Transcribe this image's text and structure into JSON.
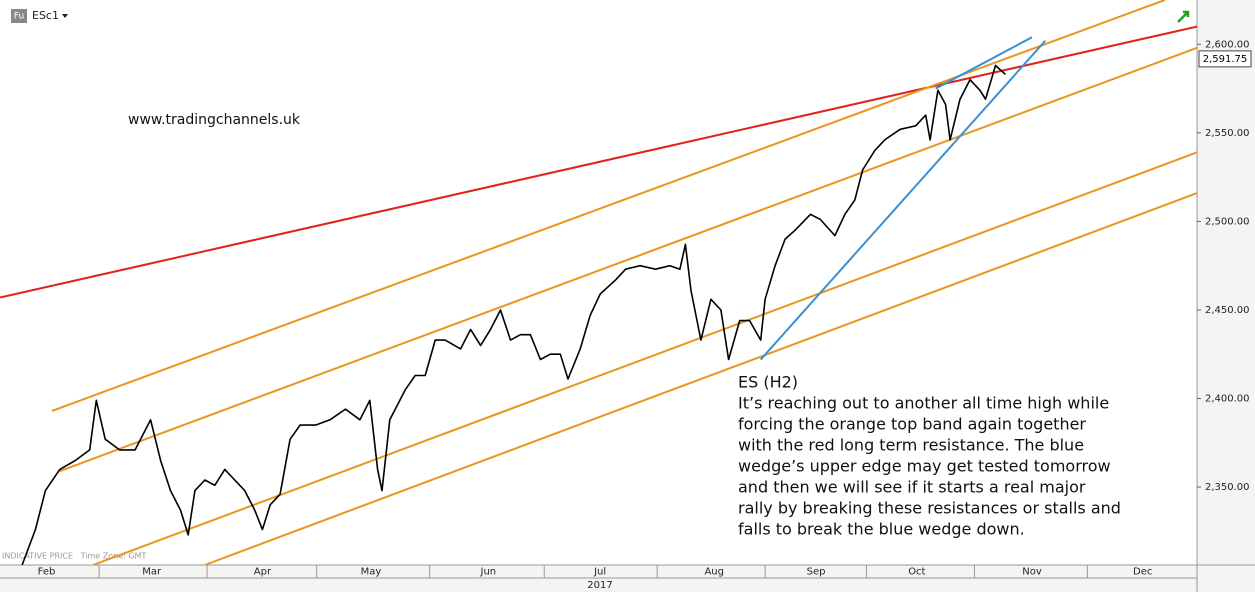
{
  "chart_data": {
    "type": "line",
    "instrument": "ESc1",
    "badge": "Fu",
    "watermark": "www.tradingchannels.uk",
    "footnote": "INDICATIVE PRICE   Time Zone: GMT",
    "year": "2017",
    "annotation": [
      "ES (H2)",
      "It’s reaching out to another all time high while",
      "forcing the orange top band again together",
      "with the red long term resistance. The blue",
      "wedge’s upper edge may get tested tomorrow",
      "and then we will see if it starts a real major",
      "rally by breaking these resistances or stalls and",
      "falls to break the blue wedge down."
    ],
    "xlim": [
      2.16,
      12.97
    ],
    "xticks": [
      {
        "value": 2.58,
        "label": "Feb"
      },
      {
        "value": 3.53,
        "label": "Mar"
      },
      {
        "value": 4.53,
        "label": "Apr"
      },
      {
        "value": 5.51,
        "label": "May"
      },
      {
        "value": 6.57,
        "label": "Jun"
      },
      {
        "value": 7.58,
        "label": "Jul"
      },
      {
        "value": 8.61,
        "label": "Aug"
      },
      {
        "value": 9.53,
        "label": "Sep"
      },
      {
        "value": 10.44,
        "label": "Oct"
      },
      {
        "value": 11.48,
        "label": "Nov"
      },
      {
        "value": 12.48,
        "label": "Dec"
      }
    ],
    "ylim": [
      2306,
      2625
    ],
    "yticks": [
      {
        "value": 2350,
        "label": "2,350.00"
      },
      {
        "value": 2400,
        "label": "2,400.00"
      },
      {
        "value": 2450,
        "label": "2,450.00"
      },
      {
        "value": 2500,
        "label": "2,500.00"
      },
      {
        "value": 2550,
        "label": "2,550.00"
      },
      {
        "value": 2600,
        "label": "2,600.00"
      }
    ],
    "series": [
      {
        "color": "#000000",
        "x": [
          2.36,
          2.48,
          2.57,
          2.7,
          2.84,
          2.97,
          3.03,
          3.11,
          3.24,
          3.38,
          3.52,
          3.61,
          3.7,
          3.79,
          3.86,
          3.92,
          4.01,
          4.1,
          4.19,
          4.28,
          4.37,
          4.46,
          4.53,
          4.6,
          4.69,
          4.78,
          4.87,
          5.01,
          5.14,
          5.28,
          5.41,
          5.5,
          5.57,
          5.61,
          5.68,
          5.82,
          5.91,
          6.0,
          6.09,
          6.18,
          6.32,
          6.41,
          6.5,
          6.59,
          6.68,
          6.77,
          6.86,
          6.95,
          7.04,
          7.13,
          7.22,
          7.29,
          7.4,
          7.49,
          7.58,
          7.72,
          7.81,
          7.94,
          8.08,
          8.21,
          8.3,
          8.35,
          8.4,
          8.49,
          8.58,
          8.67,
          8.74,
          8.84,
          8.93,
          9.03,
          9.07,
          9.16,
          9.25,
          9.34,
          9.48,
          9.57,
          9.7,
          9.79,
          9.88,
          9.95,
          10.06,
          10.15,
          10.29,
          10.43,
          10.52,
          10.56,
          10.63,
          10.7,
          10.74,
          10.83,
          10.92,
          11.01,
          11.06,
          11.15,
          11.24
        ],
        "values": [
          2306,
          2326,
          2348,
          2360,
          2365,
          2371,
          2399,
          2377,
          2371,
          2371,
          2388,
          2365,
          2348,
          2337,
          2323,
          2348,
          2354,
          2351,
          2360,
          2354,
          2348,
          2337,
          2326,
          2340,
          2346,
          2377,
          2385,
          2385,
          2388,
          2394,
          2388,
          2399,
          2360,
          2348,
          2388,
          2405,
          2413,
          2413,
          2433,
          2433,
          2428,
          2439,
          2430,
          2439,
          2450,
          2433,
          2436,
          2436,
          2422,
          2425,
          2425,
          2411,
          2428,
          2447,
          2459,
          2467,
          2473,
          2475,
          2473,
          2475,
          2473,
          2487,
          2461,
          2433,
          2456,
          2450,
          2422,
          2444,
          2444,
          2433,
          2456,
          2475,
          2490,
          2495,
          2504,
          2501,
          2492,
          2504,
          2512,
          2529,
          2540,
          2546,
          2552,
          2554,
          2560,
          2546,
          2574,
          2566,
          2546,
          2569,
          2580,
          2574,
          2569,
          2588,
          2583
        ],
        "last_value": 2591.75,
        "last_value_label": "2,591.75"
      }
    ],
    "trendlines": [
      {
        "color": "#e0231c",
        "x": [
          2.16,
          12.97
        ],
        "values": [
          2457,
          2610
        ]
      },
      {
        "color": "#e8961e",
        "x": [
          2.63,
          12.68
        ],
        "values": [
          2393,
          2625
        ]
      },
      {
        "color": "#e8961e",
        "x": [
          2.7,
          12.97
        ],
        "values": [
          2359,
          2598
        ]
      },
      {
        "color": "#e8961e",
        "x": [
          3.0,
          12.97
        ],
        "values": [
          2306,
          2539
        ]
      },
      {
        "color": "#e8961e",
        "x": [
          4.01,
          12.97
        ],
        "values": [
          2306,
          2516
        ]
      },
      {
        "color": "#3a8fd6",
        "x": [
          9.03,
          11.6
        ],
        "values": [
          2422,
          2602
        ]
      },
      {
        "color": "#3a8fd6",
        "x": [
          10.61,
          11.48
        ],
        "values": [
          2575,
          2604
        ]
      }
    ]
  }
}
